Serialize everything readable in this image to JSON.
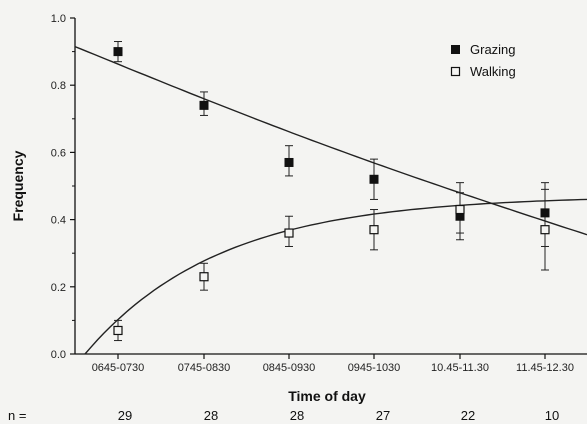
{
  "chart_data": {
    "type": "scatter",
    "title": "",
    "xlabel": "Time of day",
    "ylabel": "Frequency",
    "ylim": [
      0,
      1.0
    ],
    "yticks": [
      "0.0",
      "0.2",
      "0.4",
      "0.6",
      "0.8",
      "1.0"
    ],
    "categories": [
      "0645-0730",
      "0745-0830",
      "0845-0930",
      "0945-1030",
      "10.45-11.30",
      "11.45-12.30"
    ],
    "series": [
      {
        "name": "Grazing",
        "marker": "filled-square",
        "values": [
          0.9,
          0.74,
          0.57,
          0.52,
          0.41,
          0.42
        ],
        "err_low": [
          0.87,
          0.71,
          0.53,
          0.46,
          0.36,
          0.32
        ],
        "err_high": [
          0.93,
          0.78,
          0.62,
          0.58,
          0.51,
          0.51
        ],
        "fit_curve": {
          "start": 0.915,
          "end": 0.355
        }
      },
      {
        "name": "Walking",
        "marker": "open-square",
        "values": [
          0.07,
          0.23,
          0.36,
          0.37,
          0.43,
          0.37
        ],
        "err_low": [
          0.04,
          0.19,
          0.32,
          0.31,
          0.34,
          0.25
        ],
        "err_high": [
          0.1,
          0.27,
          0.41,
          0.43,
          0.48,
          0.49
        ],
        "fit_curve": {
          "start": 0.0,
          "end": 0.46
        }
      }
    ],
    "n_label": "n =",
    "n_values": [
      "29",
      "28",
      "28",
      "27",
      "22",
      "10"
    ],
    "legend_position": "top-right",
    "grid": false
  }
}
